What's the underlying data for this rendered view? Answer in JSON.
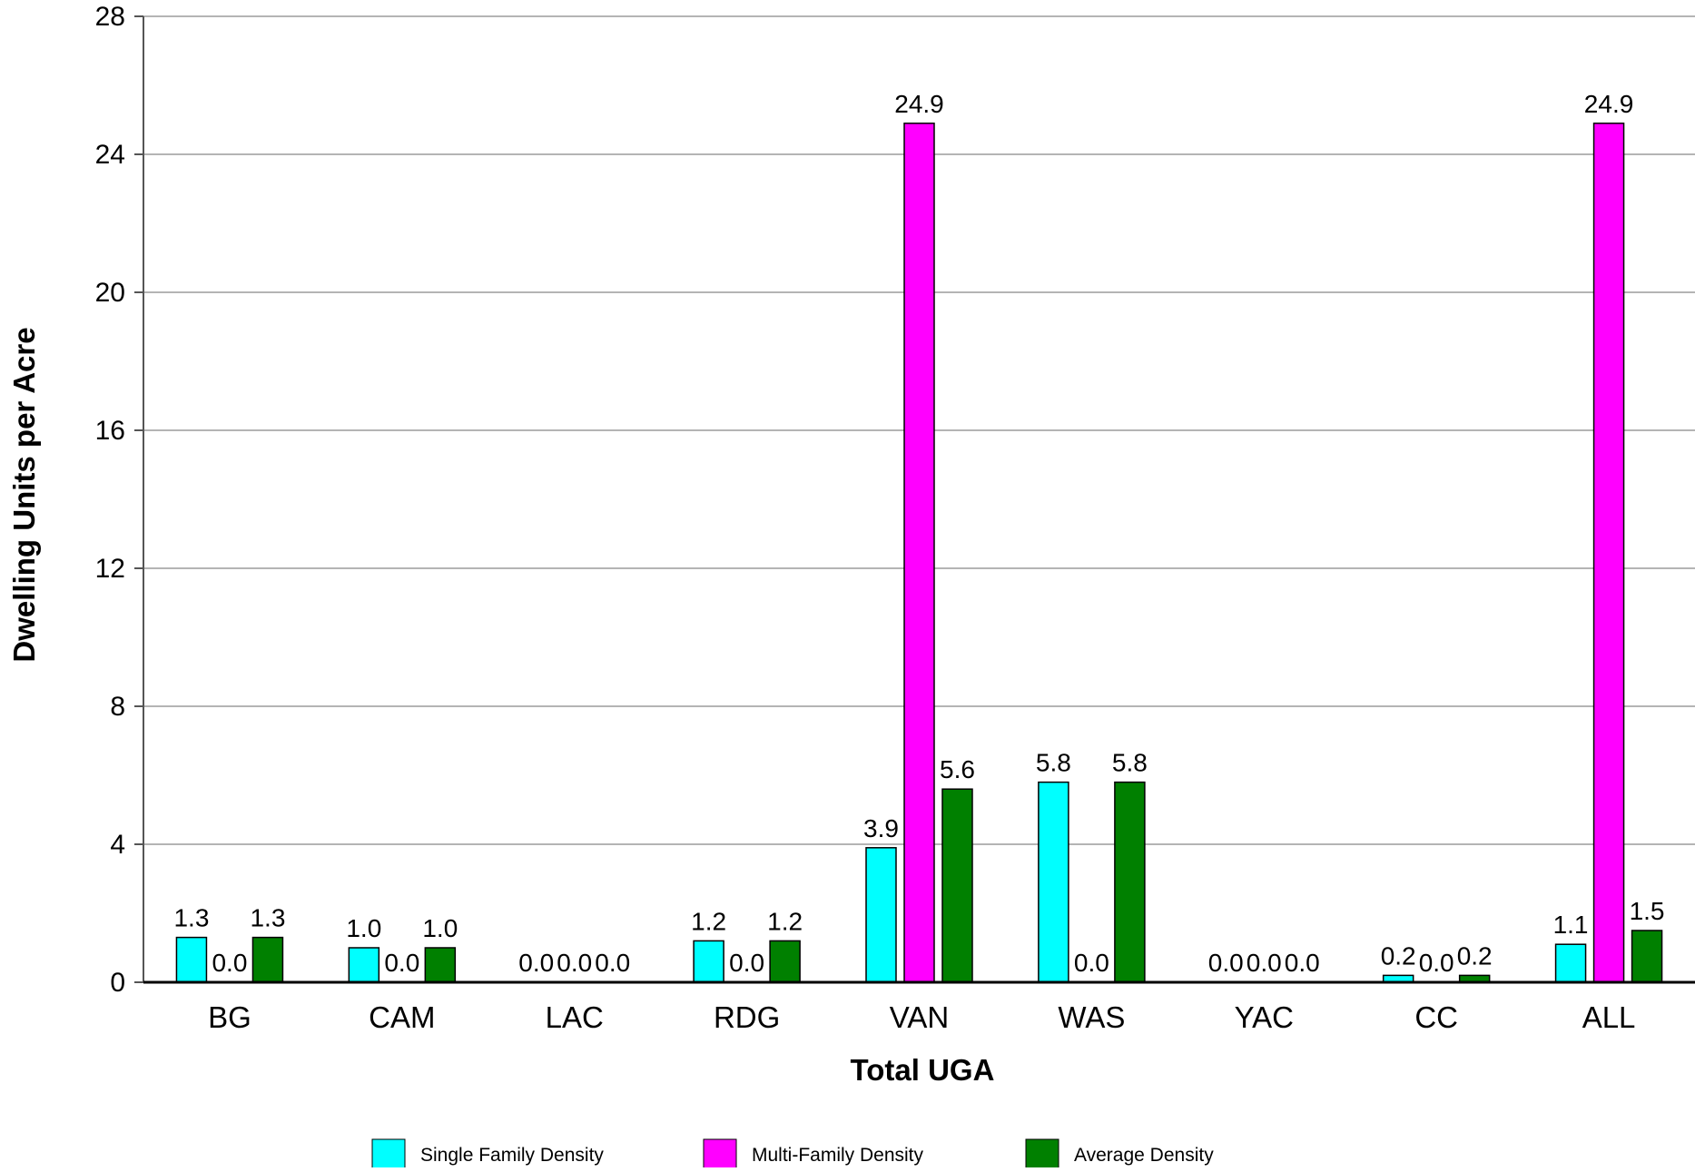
{
  "chart_data": {
    "type": "bar",
    "title": "",
    "xlabel": "Total UGA",
    "ylabel": "Dwelling Units per Acre",
    "ylim": [
      0,
      28
    ],
    "yticks": [
      0,
      4,
      8,
      12,
      16,
      20,
      24,
      28
    ],
    "grid": true,
    "legend_position": "bottom",
    "categories": [
      "BG",
      "CAM",
      "LAC",
      "RDG",
      "VAN",
      "WAS",
      "YAC",
      "CC",
      "ALL"
    ],
    "series": [
      {
        "name": "Single Family Density",
        "color": "#00ffff",
        "values": [
          1.3,
          1.0,
          0.0,
          1.2,
          3.9,
          5.8,
          0.0,
          0.2,
          1.1
        ],
        "labels": [
          "1.3",
          "1.0",
          "0.0",
          "1.2",
          "3.9",
          "5.8",
          "0.0",
          "0.2",
          "1.1"
        ]
      },
      {
        "name": "Multi-Family Density",
        "color": "#ff00ff",
        "values": [
          0.0,
          0.0,
          0.0,
          0.0,
          24.9,
          0.0,
          0.0,
          0.0,
          24.9
        ],
        "labels": [
          "0.0",
          "0.0",
          "0.0",
          "0.0",
          "24.9",
          "0.0",
          "0.0",
          "0.0",
          "24.9"
        ]
      },
      {
        "name": "Average Density",
        "color": "#008000",
        "values": [
          1.3,
          1.0,
          0.0,
          1.2,
          5.6,
          5.8,
          0.0,
          0.2,
          1.5
        ],
        "labels": [
          "1.3",
          "1.0",
          "0.0",
          "1.2",
          "5.6",
          "5.8",
          "0.0",
          "0.2",
          "1.5"
        ]
      }
    ]
  }
}
